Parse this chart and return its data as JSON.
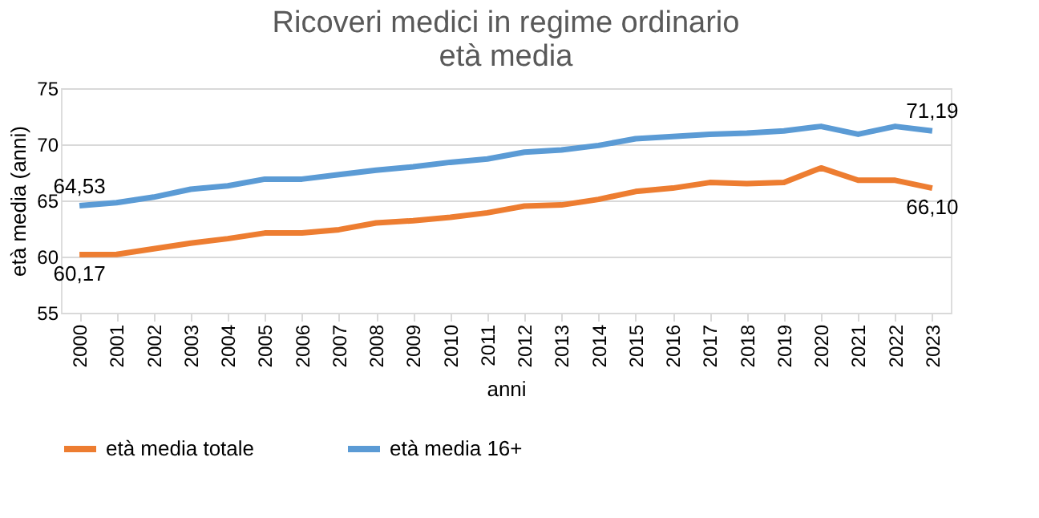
{
  "chart_data": {
    "type": "line",
    "title": [
      "Ricoveri medici in regime ordinario",
      "età media"
    ],
    "xlabel": "anni",
    "ylabel": "età media (anni)",
    "categories": [
      "2000",
      "2001",
      "2002",
      "2003",
      "2004",
      "2005",
      "2006",
      "2007",
      "2008",
      "2009",
      "2010",
      "2011",
      "2012",
      "2013",
      "2014",
      "2015",
      "2016",
      "2017",
      "2018",
      "2019",
      "2020",
      "2021",
      "2022",
      "2023"
    ],
    "series": [
      {
        "name": "età media totale",
        "color": "#ed7d31",
        "values": [
          60.17,
          60.2,
          60.7,
          61.2,
          61.6,
          62.1,
          62.1,
          62.4,
          63.0,
          63.2,
          63.5,
          63.9,
          64.5,
          64.6,
          65.1,
          65.8,
          66.1,
          66.6,
          66.5,
          66.6,
          67.9,
          66.8,
          66.8,
          66.1
        ],
        "value_labels": [
          "60,17",
          null,
          null,
          null,
          null,
          null,
          null,
          null,
          null,
          null,
          null,
          null,
          null,
          null,
          null,
          null,
          null,
          null,
          null,
          null,
          null,
          null,
          null,
          "66,10"
        ]
      },
      {
        "name": "età media 16+",
        "color": "#5b9bd5",
        "values": [
          64.53,
          64.8,
          65.3,
          66.0,
          66.3,
          66.9,
          66.9,
          67.3,
          67.7,
          68.0,
          68.4,
          68.7,
          69.3,
          69.5,
          69.9,
          70.5,
          70.7,
          70.9,
          71.0,
          71.2,
          71.6,
          70.9,
          71.6,
          71.19
        ],
        "value_labels": [
          "64,53",
          null,
          null,
          null,
          null,
          null,
          null,
          null,
          null,
          null,
          null,
          null,
          null,
          null,
          null,
          null,
          null,
          null,
          null,
          null,
          null,
          null,
          null,
          "71,19"
        ]
      }
    ],
    "ylim": [
      55,
      75
    ],
    "yticks": [
      55,
      60,
      65,
      70,
      75
    ],
    "grid": "y",
    "legend": "bottom",
    "marker": "none",
    "line_style": "solid"
  }
}
